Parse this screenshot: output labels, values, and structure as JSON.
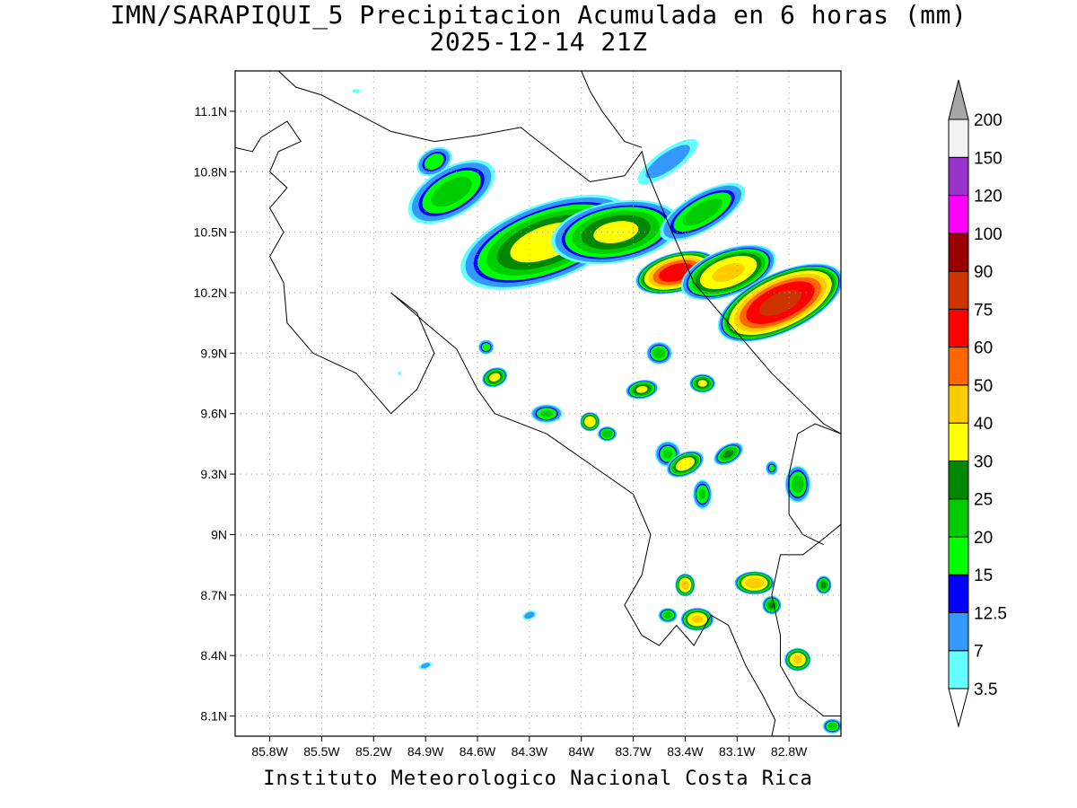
{
  "title": {
    "line1": "IMN/SARAPIQUI_5 Precipitacion Acumulada en 6 horas (mm)",
    "line2": "2025-12-14 21Z"
  },
  "footer": "Instituto Meteorologico Nacional Costa Rica",
  "map": {
    "lon_range": [
      -86.0,
      -82.5
    ],
    "lat_range": [
      8.0,
      11.3
    ],
    "lon_ticks": [
      {
        "value": -85.8,
        "label": "85.8W"
      },
      {
        "value": -85.5,
        "label": "85.5W"
      },
      {
        "value": -85.2,
        "label": "85.2W"
      },
      {
        "value": -84.9,
        "label": "84.9W"
      },
      {
        "value": -84.6,
        "label": "84.6W"
      },
      {
        "value": -84.3,
        "label": "84.3W"
      },
      {
        "value": -84.0,
        "label": "84W"
      },
      {
        "value": -83.7,
        "label": "83.7W"
      },
      {
        "value": -83.4,
        "label": "83.4W"
      },
      {
        "value": -83.1,
        "label": "83.1W"
      },
      {
        "value": -82.8,
        "label": "82.8W"
      }
    ],
    "lat_ticks": [
      {
        "value": 8.1,
        "label": "8.1N"
      },
      {
        "value": 8.4,
        "label": "8.4N"
      },
      {
        "value": 8.7,
        "label": "8.7N"
      },
      {
        "value": 9.0,
        "label": "9N"
      },
      {
        "value": 9.3,
        "label": "9.3N"
      },
      {
        "value": 9.6,
        "label": "9.6N"
      },
      {
        "value": 9.9,
        "label": "9.9N"
      },
      {
        "value": 10.2,
        "label": "10.2N"
      },
      {
        "value": 10.5,
        "label": "10.5N"
      },
      {
        "value": 10.8,
        "label": "10.8N"
      },
      {
        "value": 11.1,
        "label": "11.1N"
      }
    ],
    "grid": true
  },
  "colorbar": {
    "levels": [
      {
        "label": "3.5",
        "color": "#66ffff"
      },
      {
        "label": "7",
        "color": "#3399ff"
      },
      {
        "label": "12.5",
        "color": "#0000ff"
      },
      {
        "label": "15",
        "color": "#00ff00"
      },
      {
        "label": "20",
        "color": "#00cc00"
      },
      {
        "label": "25",
        "color": "#008800"
      },
      {
        "label": "30",
        "color": "#ffff00"
      },
      {
        "label": "40",
        "color": "#ffcc00"
      },
      {
        "label": "50",
        "color": "#ff6600"
      },
      {
        "label": "60",
        "color": "#ff0000"
      },
      {
        "label": "75",
        "color": "#cc3300"
      },
      {
        "label": "90",
        "color": "#990000"
      },
      {
        "label": "100",
        "color": "#ff00ff"
      },
      {
        "label": "120",
        "color": "#9933cc"
      },
      {
        "label": "150",
        "color": "#f2f2f2"
      },
      {
        "label": "200",
        "color": "#a6a6a6"
      }
    ],
    "below_color": "#ffffff",
    "above_color": "#a6a6a6"
  },
  "precip_cells": [
    {
      "lon": -84.2,
      "lat": 10.45,
      "rx": 0.55,
      "ry": 0.2,
      "rot": -20,
      "max": 32
    },
    {
      "lon": -83.8,
      "lat": 10.5,
      "rx": 0.4,
      "ry": 0.16,
      "rot": -10,
      "max": 30
    },
    {
      "lon": -84.75,
      "lat": 10.7,
      "rx": 0.3,
      "ry": 0.13,
      "rot": -30,
      "max": 22
    },
    {
      "lon": -84.85,
      "lat": 10.85,
      "rx": 0.12,
      "ry": 0.07,
      "rot": -30,
      "max": 18
    },
    {
      "lon": -83.45,
      "lat": 10.3,
      "rx": 0.25,
      "ry": 0.1,
      "rot": -15,
      "max": 65
    },
    {
      "lon": -83.15,
      "lat": 10.3,
      "rx": 0.3,
      "ry": 0.12,
      "rot": -20,
      "max": 40
    },
    {
      "lon": -82.85,
      "lat": 10.15,
      "rx": 0.4,
      "ry": 0.15,
      "rot": -25,
      "max": 75
    },
    {
      "lon": -83.3,
      "lat": 10.6,
      "rx": 0.3,
      "ry": 0.1,
      "rot": -30,
      "max": 22
    },
    {
      "lon": -83.5,
      "lat": 10.85,
      "rx": 0.25,
      "ry": 0.07,
      "rot": -35,
      "max": 10
    },
    {
      "lon": -84.5,
      "lat": 9.78,
      "rx": 0.08,
      "ry": 0.05,
      "rot": -20,
      "max": 32
    },
    {
      "lon": -84.55,
      "lat": 9.93,
      "rx": 0.05,
      "ry": 0.04,
      "rot": 0,
      "max": 18
    },
    {
      "lon": -84.2,
      "lat": 9.6,
      "rx": 0.1,
      "ry": 0.05,
      "rot": 0,
      "max": 20
    },
    {
      "lon": -83.95,
      "lat": 9.56,
      "rx": 0.06,
      "ry": 0.05,
      "rot": 0,
      "max": 38
    },
    {
      "lon": -83.85,
      "lat": 9.5,
      "rx": 0.06,
      "ry": 0.04,
      "rot": 0,
      "max": 24
    },
    {
      "lon": -83.65,
      "lat": 9.72,
      "rx": 0.1,
      "ry": 0.05,
      "rot": -10,
      "max": 30
    },
    {
      "lon": -83.55,
      "lat": 9.9,
      "rx": 0.08,
      "ry": 0.06,
      "rot": 0,
      "max": 22
    },
    {
      "lon": -83.3,
      "lat": 9.75,
      "rx": 0.08,
      "ry": 0.05,
      "rot": 0,
      "max": 30
    },
    {
      "lon": -83.5,
      "lat": 9.4,
      "rx": 0.08,
      "ry": 0.07,
      "rot": 0,
      "max": 20
    },
    {
      "lon": -83.4,
      "lat": 9.35,
      "rx": 0.12,
      "ry": 0.06,
      "rot": -25,
      "max": 35
    },
    {
      "lon": -83.15,
      "lat": 9.4,
      "rx": 0.1,
      "ry": 0.05,
      "rot": -30,
      "max": 25
    },
    {
      "lon": -83.3,
      "lat": 9.2,
      "rx": 0.06,
      "ry": 0.08,
      "rot": 0,
      "max": 20
    },
    {
      "lon": -83.4,
      "lat": 8.75,
      "rx": 0.06,
      "ry": 0.06,
      "rot": 0,
      "max": 42
    },
    {
      "lon": -83.5,
      "lat": 8.6,
      "rx": 0.06,
      "ry": 0.04,
      "rot": 0,
      "max": 22
    },
    {
      "lon": -83.33,
      "lat": 8.58,
      "rx": 0.1,
      "ry": 0.06,
      "rot": 0,
      "max": 40
    },
    {
      "lon": -83.0,
      "lat": 8.76,
      "rx": 0.12,
      "ry": 0.06,
      "rot": 0,
      "max": 45
    },
    {
      "lon": -82.9,
      "lat": 8.65,
      "rx": 0.06,
      "ry": 0.05,
      "rot": 0,
      "max": 25
    },
    {
      "lon": -82.75,
      "lat": 8.38,
      "rx": 0.08,
      "ry": 0.06,
      "rot": 0,
      "max": 40
    },
    {
      "lon": -82.6,
      "lat": 8.75,
      "rx": 0.05,
      "ry": 0.05,
      "rot": 0,
      "max": 25
    },
    {
      "lon": -82.75,
      "lat": 9.25,
      "rx": 0.08,
      "ry": 0.1,
      "rot": 0,
      "max": 22
    },
    {
      "lon": -82.9,
      "lat": 9.33,
      "rx": 0.04,
      "ry": 0.04,
      "rot": 0,
      "max": 16
    },
    {
      "lon": -84.3,
      "lat": 8.6,
      "rx": 0.05,
      "ry": 0.025,
      "rot": -20,
      "max": 10
    },
    {
      "lon": -84.9,
      "lat": 8.35,
      "rx": 0.05,
      "ry": 0.02,
      "rot": -20,
      "max": 9
    },
    {
      "lon": -85.3,
      "lat": 11.2,
      "rx": 0.05,
      "ry": 0.02,
      "rot": 0,
      "max": 4
    },
    {
      "lon": -85.05,
      "lat": 9.8,
      "rx": 0.02,
      "ry": 0.02,
      "rot": 0,
      "max": 4
    },
    {
      "lon": -82.55,
      "lat": 8.05,
      "rx": 0.06,
      "ry": 0.04,
      "rot": 0,
      "max": 22
    }
  ],
  "coastlines": [
    [
      [
        -86.0,
        10.92
      ],
      [
        -85.9,
        10.9
      ],
      [
        -85.85,
        10.97
      ],
      [
        -85.7,
        11.05
      ],
      [
        -85.62,
        10.95
      ],
      [
        -85.75,
        10.9
      ],
      [
        -85.8,
        10.8
      ],
      [
        -85.7,
        10.72
      ],
      [
        -85.8,
        10.62
      ],
      [
        -85.72,
        10.5
      ],
      [
        -85.8,
        10.38
      ],
      [
        -85.72,
        10.25
      ],
      [
        -85.7,
        10.05
      ],
      [
        -85.55,
        9.9
      ],
      [
        -85.3,
        9.8
      ],
      [
        -85.1,
        9.6
      ],
      [
        -84.95,
        9.72
      ],
      [
        -84.85,
        9.9
      ],
      [
        -84.95,
        10.1
      ],
      [
        -85.1,
        10.2
      ],
      [
        -84.9,
        10.05
      ],
      [
        -84.72,
        9.92
      ],
      [
        -84.6,
        9.72
      ],
      [
        -84.5,
        9.6
      ],
      [
        -84.2,
        9.5
      ],
      [
        -83.95,
        9.35
      ],
      [
        -83.7,
        9.2
      ],
      [
        -83.6,
        9.0
      ],
      [
        -83.65,
        8.8
      ],
      [
        -83.75,
        8.65
      ],
      [
        -83.65,
        8.5
      ],
      [
        -83.55,
        8.45
      ],
      [
        -83.45,
        8.55
      ],
      [
        -83.35,
        8.45
      ],
      [
        -83.25,
        8.6
      ],
      [
        -83.15,
        8.55
      ],
      [
        -83.05,
        8.35
      ],
      [
        -82.95,
        8.2
      ],
      [
        -82.88,
        8.08
      ],
      [
        -82.9,
        8.0
      ]
    ],
    [
      [
        -85.75,
        11.3
      ],
      [
        -85.65,
        11.22
      ],
      [
        -85.5,
        11.18
      ],
      [
        -85.1,
        11.0
      ],
      [
        -84.85,
        10.95
      ],
      [
        -84.6,
        10.98
      ],
      [
        -84.35,
        11.02
      ],
      [
        -84.1,
        10.85
      ],
      [
        -83.95,
        10.75
      ],
      [
        -83.75,
        10.78
      ],
      [
        -83.65,
        10.9
      ],
      [
        -83.62,
        10.8
      ],
      [
        -83.5,
        10.55
      ],
      [
        -83.35,
        10.25
      ],
      [
        -83.1,
        10.0
      ],
      [
        -82.9,
        9.8
      ],
      [
        -82.6,
        9.55
      ],
      [
        -82.5,
        9.5
      ]
    ],
    [
      [
        -84.0,
        11.3
      ],
      [
        -83.95,
        11.2
      ],
      [
        -83.88,
        11.1
      ],
      [
        -83.75,
        10.95
      ],
      [
        -83.65,
        10.92
      ]
    ],
    [
      [
        -82.5,
        9.05
      ],
      [
        -82.6,
        8.98
      ],
      [
        -82.72,
        8.9
      ],
      [
        -82.85,
        8.9
      ],
      [
        -82.9,
        8.7
      ],
      [
        -82.85,
        8.5
      ],
      [
        -82.85,
        8.35
      ],
      [
        -82.75,
        8.2
      ],
      [
        -82.6,
        8.1
      ],
      [
        -82.5,
        8.1
      ]
    ],
    [
      [
        -82.5,
        9.5
      ],
      [
        -82.65,
        9.55
      ],
      [
        -82.75,
        9.5
      ],
      [
        -82.8,
        9.3
      ],
      [
        -82.8,
        9.1
      ],
      [
        -82.72,
        9.0
      ],
      [
        -82.6,
        8.95
      ]
    ]
  ]
}
